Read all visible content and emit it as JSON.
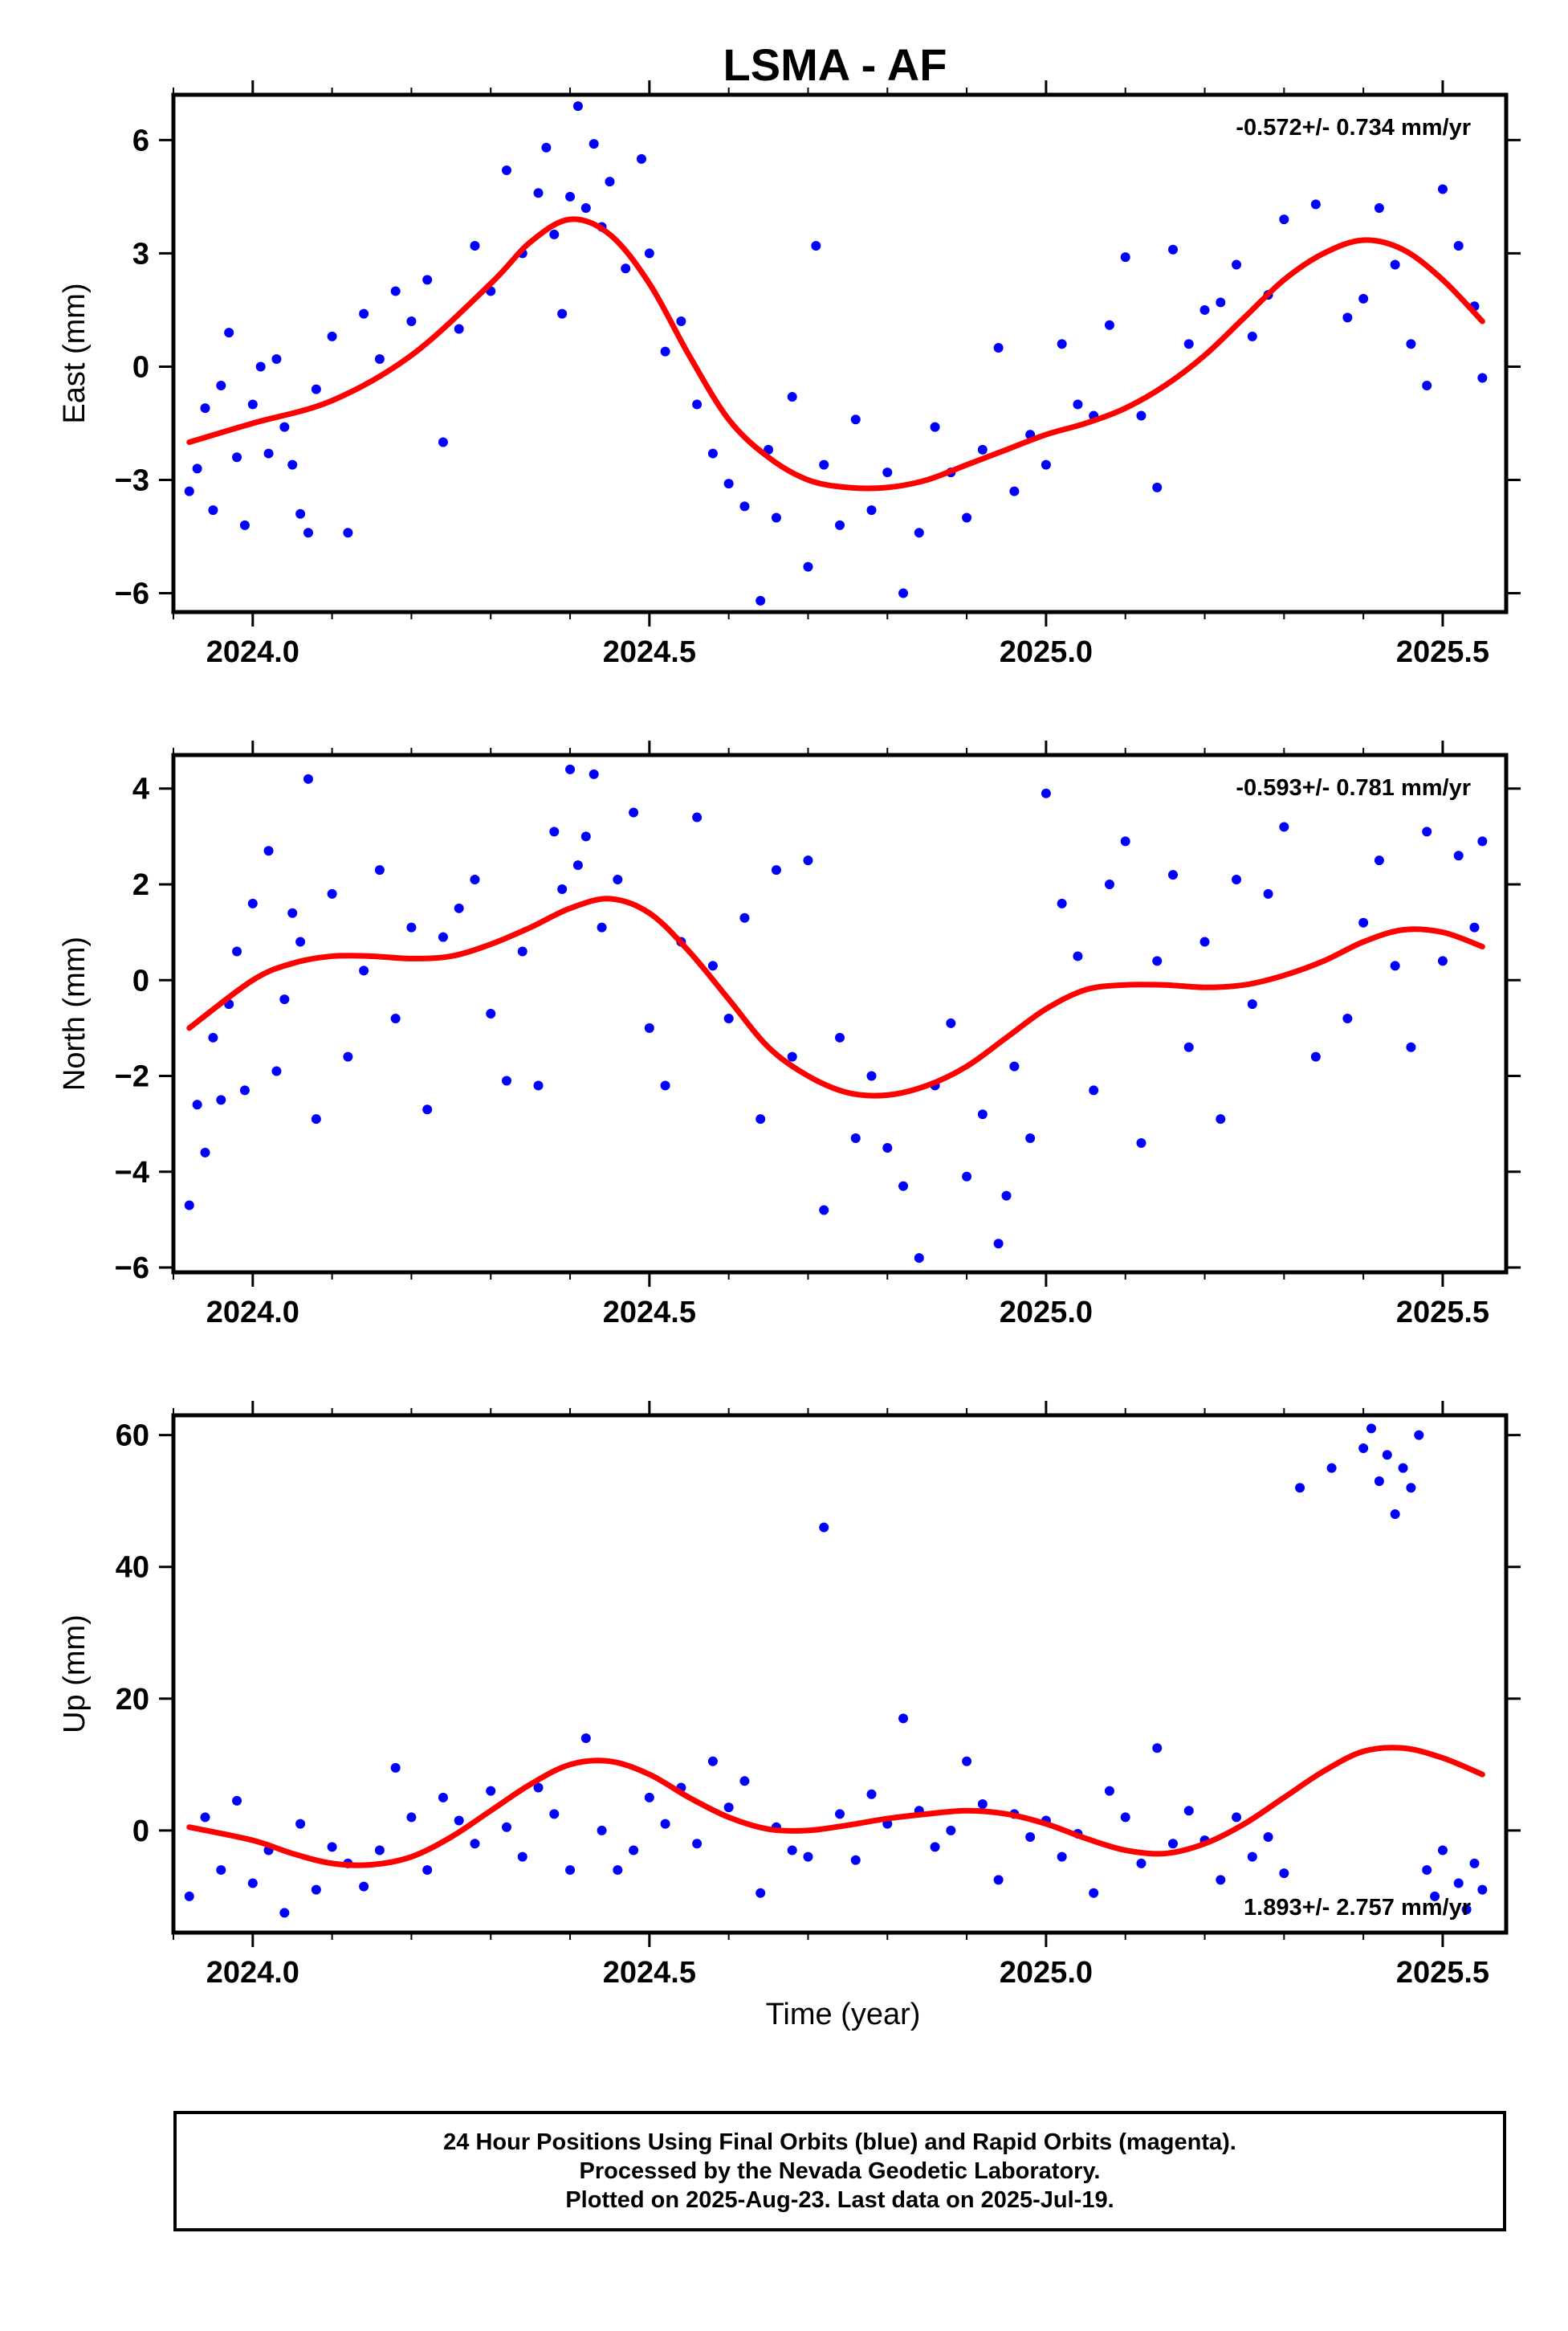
{
  "title": "LSMA - AF",
  "xlabel": "Time (year)",
  "colors": {
    "points": "#0000ff",
    "fit": "#ff0000",
    "frame": "#000000"
  },
  "caption": [
    "24 Hour Positions Using Final Orbits (blue) and Rapid Orbits (magenta).",
    "Processed by the Nevada Geodetic Laboratory.",
    "Plotted on 2025-Aug-23. Last data on 2025-Jul-19."
  ],
  "chart_data": [
    {
      "type": "scatter",
      "ylabel": "East (mm)",
      "rate": "-0.572+/- 0.734 mm/yr",
      "rate_position": "top-right",
      "xlim": [
        2023.9,
        2025.58
      ],
      "ylim": [
        -6.5,
        7.2
      ],
      "xticks": [
        2024.0,
        2024.5,
        2025.0,
        2025.5
      ],
      "xticklabels": [
        "2024.0",
        "2024.5",
        "2025.0",
        "2025.5"
      ],
      "yticks": [
        -6,
        -3,
        0,
        3,
        6
      ],
      "yticklabels": [
        "−6",
        "−3",
        "0",
        "3",
        "6"
      ],
      "fit": {
        "x": [
          2023.92,
          2024.0,
          2024.1,
          2024.2,
          2024.3,
          2024.35,
          2024.4,
          2024.45,
          2024.5,
          2024.55,
          2024.6,
          2024.65,
          2024.7,
          2024.75,
          2024.8,
          2024.85,
          2024.9,
          2024.95,
          2025.0,
          2025.05,
          2025.1,
          2025.15,
          2025.2,
          2025.25,
          2025.3,
          2025.35,
          2025.4,
          2025.45,
          2025.5,
          2025.55
        ],
        "y": [
          -2.0,
          -1.5,
          -0.9,
          0.3,
          2.2,
          3.3,
          3.9,
          3.5,
          2.2,
          0.3,
          -1.4,
          -2.4,
          -3.0,
          -3.2,
          -3.2,
          -3.0,
          -2.6,
          -2.2,
          -1.8,
          -1.5,
          -1.1,
          -0.5,
          0.3,
          1.3,
          2.3,
          3.0,
          3.35,
          3.1,
          2.3,
          1.2
        ]
      },
      "points": {
        "x": [
          2023.92,
          2023.93,
          2023.94,
          2023.95,
          2023.96,
          2023.97,
          2023.98,
          2023.99,
          2024.0,
          2024.01,
          2024.02,
          2024.03,
          2024.04,
          2024.05,
          2024.06,
          2024.07,
          2024.08,
          2024.1,
          2024.12,
          2024.14,
          2024.16,
          2024.18,
          2024.2,
          2024.22,
          2024.24,
          2024.26,
          2024.28,
          2024.3,
          2024.32,
          2024.34,
          2024.36,
          2024.37,
          2024.38,
          2024.39,
          2024.4,
          2024.41,
          2024.42,
          2024.43,
          2024.44,
          2024.45,
          2024.47,
          2024.49,
          2024.5,
          2024.52,
          2024.54,
          2024.56,
          2024.58,
          2024.6,
          2024.62,
          2024.64,
          2024.65,
          2024.66,
          2024.68,
          2024.7,
          2024.71,
          2024.72,
          2024.74,
          2024.76,
          2024.78,
          2024.8,
          2024.82,
          2024.84,
          2024.86,
          2024.88,
          2024.9,
          2024.92,
          2024.94,
          2024.96,
          2024.98,
          2025.0,
          2025.02,
          2025.04,
          2025.06,
          2025.08,
          2025.1,
          2025.12,
          2025.14,
          2025.16,
          2025.18,
          2025.2,
          2025.22,
          2025.24,
          2025.26,
          2025.28,
          2025.3,
          2025.34,
          2025.38,
          2025.4,
          2025.42,
          2025.44,
          2025.46,
          2025.48,
          2025.5,
          2025.52,
          2025.54,
          2025.55
        ],
        "y": [
          -3.3,
          -2.7,
          -1.1,
          -3.8,
          -0.5,
          0.9,
          -2.4,
          -4.2,
          -1.0,
          0.0,
          -2.3,
          0.2,
          -1.6,
          -2.6,
          -3.9,
          -4.4,
          -0.6,
          0.8,
          -4.4,
          1.4,
          0.2,
          2.0,
          1.2,
          2.3,
          -2.0,
          1.0,
          3.2,
          2.0,
          5.2,
          3.0,
          4.6,
          5.8,
          3.5,
          1.4,
          4.5,
          6.9,
          4.2,
          5.9,
          3.7,
          4.9,
          2.6,
          5.5,
          3.0,
          0.4,
          1.2,
          -1.0,
          -2.3,
          -3.1,
          -3.7,
          -6.2,
          -2.2,
          -4.0,
          -0.8,
          -5.3,
          3.2,
          -2.6,
          -4.2,
          -1.4,
          -3.8,
          -2.8,
          -6.0,
          -4.4,
          -1.6,
          -2.8,
          -4.0,
          -2.2,
          0.5,
          -3.3,
          -1.8,
          -2.6,
          0.6,
          -1.0,
          -1.3,
          1.1,
          2.9,
          -1.3,
          -3.2,
          3.1,
          0.6,
          1.5,
          1.7,
          2.7,
          0.8,
          1.9,
          3.9,
          4.3,
          1.3,
          1.8,
          4.2,
          2.7,
          0.6,
          -0.5,
          4.7,
          3.2,
          1.6,
          -0.3
        ]
      }
    },
    {
      "type": "scatter",
      "ylabel": "North (mm)",
      "rate": "-0.593+/- 0.781 mm/yr",
      "rate_position": "top-right",
      "xlim": [
        2023.9,
        2025.58
      ],
      "ylim": [
        -6.1,
        4.7
      ],
      "xticks": [
        2024.0,
        2024.5,
        2025.0,
        2025.5
      ],
      "xticklabels": [
        "2024.0",
        "2024.5",
        "2025.0",
        "2025.5"
      ],
      "yticks": [
        -6,
        -4,
        -2,
        0,
        2,
        4
      ],
      "yticklabels": [
        "−6",
        "−4",
        "−2",
        "0",
        "2",
        "4"
      ],
      "fit": {
        "x": [
          2023.92,
          2024.0,
          2024.05,
          2024.1,
          2024.15,
          2024.2,
          2024.25,
          2024.3,
          2024.35,
          2024.4,
          2024.45,
          2024.5,
          2024.55,
          2024.6,
          2024.65,
          2024.7,
          2024.75,
          2024.8,
          2024.85,
          2024.9,
          2024.95,
          2025.0,
          2025.05,
          2025.1,
          2025.15,
          2025.2,
          2025.25,
          2025.3,
          2025.35,
          2025.4,
          2025.45,
          2025.5,
          2025.55
        ],
        "y": [
          -1.0,
          0.0,
          0.35,
          0.5,
          0.5,
          0.45,
          0.5,
          0.75,
          1.1,
          1.5,
          1.7,
          1.4,
          0.6,
          -0.4,
          -1.4,
          -2.0,
          -2.35,
          -2.4,
          -2.2,
          -1.8,
          -1.2,
          -0.6,
          -0.2,
          -0.1,
          -0.1,
          -0.15,
          -0.1,
          0.1,
          0.4,
          0.8,
          1.05,
          1.0,
          0.7
        ]
      },
      "points": {
        "x": [
          2023.92,
          2023.93,
          2023.94,
          2023.95,
          2023.96,
          2023.97,
          2023.98,
          2023.99,
          2024.0,
          2024.02,
          2024.03,
          2024.04,
          2024.05,
          2024.06,
          2024.07,
          2024.08,
          2024.1,
          2024.12,
          2024.14,
          2024.16,
          2024.18,
          2024.2,
          2024.22,
          2024.24,
          2024.26,
          2024.28,
          2024.3,
          2024.32,
          2024.34,
          2024.36,
          2024.38,
          2024.39,
          2024.4,
          2024.41,
          2024.42,
          2024.43,
          2024.44,
          2024.46,
          2024.48,
          2024.5,
          2024.52,
          2024.54,
          2024.56,
          2024.58,
          2024.6,
          2024.62,
          2024.64,
          2024.66,
          2024.68,
          2024.7,
          2024.72,
          2024.74,
          2024.76,
          2024.78,
          2024.8,
          2024.82,
          2024.84,
          2024.86,
          2024.88,
          2024.9,
          2024.92,
          2024.94,
          2024.95,
          2024.96,
          2024.98,
          2025.0,
          2025.02,
          2025.04,
          2025.06,
          2025.08,
          2025.1,
          2025.12,
          2025.14,
          2025.16,
          2025.18,
          2025.2,
          2025.22,
          2025.24,
          2025.26,
          2025.28,
          2025.3,
          2025.34,
          2025.38,
          2025.4,
          2025.42,
          2025.44,
          2025.46,
          2025.48,
          2025.5,
          2025.52,
          2025.54,
          2025.55
        ],
        "y": [
          -4.7,
          -2.6,
          -3.6,
          -1.2,
          -2.5,
          -0.5,
          0.6,
          -2.3,
          1.6,
          2.7,
          -1.9,
          -0.4,
          1.4,
          0.8,
          4.2,
          -2.9,
          1.8,
          -1.6,
          0.2,
          2.3,
          -0.8,
          1.1,
          -2.7,
          0.9,
          1.5,
          2.1,
          -0.7,
          -2.1,
          0.6,
          -2.2,
          3.1,
          1.9,
          4.4,
          2.4,
          3.0,
          4.3,
          1.1,
          2.1,
          3.5,
          -1.0,
          -2.2,
          0.8,
          3.4,
          0.3,
          -0.8,
          1.3,
          -2.9,
          2.3,
          -1.6,
          2.5,
          -4.8,
          -1.2,
          -3.3,
          -2.0,
          -3.5,
          -4.3,
          -5.8,
          -2.2,
          -0.9,
          -4.1,
          -2.8,
          -5.5,
          -4.5,
          -1.8,
          -3.3,
          3.9,
          1.6,
          0.5,
          -2.3,
          2.0,
          2.9,
          -3.4,
          0.4,
          2.2,
          -1.4,
          0.8,
          -2.9,
          2.1,
          -0.5,
          1.8,
          3.2,
          -1.6,
          -0.8,
          1.2,
          2.5,
          0.3,
          -1.4,
          3.1,
          0.4,
          2.6,
          1.1,
          2.9
        ]
      }
    },
    {
      "type": "scatter",
      "ylabel": "Up (mm)",
      "rate": "1.893+/- 2.757 mm/yr",
      "rate_position": "bottom-right",
      "xlim": [
        2023.9,
        2025.58
      ],
      "ylim": [
        -15.5,
        63
      ],
      "xticks": [
        2024.0,
        2024.5,
        2025.0,
        2025.5
      ],
      "xticklabels": [
        "2024.0",
        "2024.5",
        "2025.0",
        "2025.5"
      ],
      "yticks": [
        0,
        20,
        40,
        60
      ],
      "yticklabels": [
        "0",
        "20",
        "40",
        "60"
      ],
      "fit": {
        "x": [
          2023.92,
          2024.0,
          2024.05,
          2024.1,
          2024.15,
          2024.2,
          2024.25,
          2024.3,
          2024.35,
          2024.4,
          2024.45,
          2024.5,
          2024.55,
          2024.6,
          2024.65,
          2024.7,
          2024.75,
          2024.8,
          2024.85,
          2024.9,
          2024.95,
          2025.0,
          2025.05,
          2025.1,
          2025.15,
          2025.2,
          2025.25,
          2025.3,
          2025.35,
          2025.4,
          2025.45,
          2025.5,
          2025.55
        ],
        "y": [
          0.5,
          -1.5,
          -3.5,
          -5.0,
          -5.2,
          -4.0,
          -1.0,
          3.0,
          7.0,
          10.0,
          10.5,
          8.5,
          5.0,
          2.0,
          0.2,
          0.0,
          0.8,
          1.8,
          2.5,
          3.0,
          2.5,
          1.0,
          -1.2,
          -3.0,
          -3.5,
          -2.0,
          1.0,
          5.0,
          9.0,
          12.0,
          12.5,
          11.0,
          8.5
        ]
      },
      "points": {
        "x": [
          2023.92,
          2023.94,
          2023.96,
          2023.98,
          2024.0,
          2024.02,
          2024.04,
          2024.06,
          2024.08,
          2024.1,
          2024.12,
          2024.14,
          2024.16,
          2024.18,
          2024.2,
          2024.22,
          2024.24,
          2024.26,
          2024.28,
          2024.3,
          2024.32,
          2024.34,
          2024.36,
          2024.38,
          2024.4,
          2024.42,
          2024.44,
          2024.46,
          2024.48,
          2024.5,
          2024.52,
          2024.54,
          2024.56,
          2024.58,
          2024.6,
          2024.62,
          2024.64,
          2024.66,
          2024.68,
          2024.7,
          2024.72,
          2024.74,
          2024.76,
          2024.78,
          2024.8,
          2024.82,
          2024.84,
          2024.86,
          2024.88,
          2024.9,
          2024.92,
          2024.94,
          2024.96,
          2024.98,
          2025.0,
          2025.02,
          2025.04,
          2025.06,
          2025.08,
          2025.1,
          2025.12,
          2025.14,
          2025.16,
          2025.18,
          2025.2,
          2025.22,
          2025.24,
          2025.26,
          2025.28,
          2025.3,
          2025.32,
          2025.36,
          2025.4,
          2025.41,
          2025.42,
          2025.43,
          2025.44,
          2025.45,
          2025.46,
          2025.47,
          2025.48,
          2025.49,
          2025.5,
          2025.52,
          2025.53,
          2025.54,
          2025.55
        ],
        "y": [
          -10.0,
          2.0,
          -6.0,
          4.5,
          -8.0,
          -3.0,
          -12.5,
          1.0,
          -9.0,
          -2.5,
          -5.0,
          -8.5,
          -3.0,
          9.5,
          2.0,
          -6.0,
          5.0,
          1.5,
          -2.0,
          6.0,
          0.5,
          -4.0,
          6.5,
          2.5,
          -6.0,
          14.0,
          0.0,
          -6.0,
          -3.0,
          5.0,
          1.0,
          6.5,
          -2.0,
          10.5,
          3.5,
          7.5,
          -9.5,
          0.5,
          -3.0,
          -4.0,
          46.0,
          2.5,
          -4.5,
          5.5,
          1.0,
          17.0,
          3.0,
          -2.5,
          0.0,
          10.5,
          4.0,
          -7.5,
          2.5,
          -1.0,
          1.5,
          -4.0,
          -0.5,
          -9.5,
          6.0,
          2.0,
          -5.0,
          12.5,
          -2.0,
          3.0,
          -1.5,
          -7.5,
          2.0,
          -4.0,
          -1.0,
          -6.5,
          52.0,
          55.0,
          58.0,
          61.0,
          53.0,
          57.0,
          48.0,
          55.0,
          52.0,
          60.0,
          -6.0,
          -10.0,
          -3.0,
          -8.0,
          -12.0,
          -5.0,
          -9.0
        ]
      }
    }
  ]
}
